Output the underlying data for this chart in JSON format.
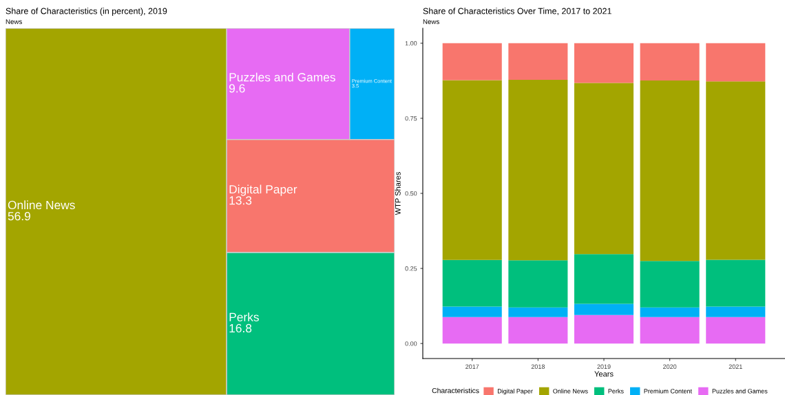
{
  "chart_data": [
    {
      "type": "other",
      "title": "Share of Characteristics (in percent), 2019",
      "subtitle": "News",
      "categories": [
        "Online News",
        "Perks",
        "Digital Paper",
        "Puzzles and Games",
        "Premium Content"
      ],
      "values": [
        56.9,
        16.8,
        13.3,
        9.6,
        3.5
      ],
      "colors": [
        "#a3a500",
        "#00bf7d",
        "#f8766d",
        "#e76bf3",
        "#00b0f6"
      ],
      "data_labels": true
    },
    {
      "type": "bar",
      "title": "Share of Characteristics Over Time, 2017 to 2021",
      "subtitle": "News",
      "xlabel": "Years",
      "ylabel": "WTP Shares",
      "legend_title": "Characteristics",
      "categories": [
        "2017",
        "2018",
        "2019",
        "2020",
        "2021"
      ],
      "stacked": true,
      "series": [
        {
          "name": "Puzzles and Games",
          "color": "#e76bf3",
          "values": [
            0.088,
            0.088,
            0.095,
            0.088,
            0.088
          ]
        },
        {
          "name": "Premium Content",
          "color": "#00b0f6",
          "values": [
            0.035,
            0.032,
            0.037,
            0.032,
            0.035
          ]
        },
        {
          "name": "Perks",
          "color": "#00bf7d",
          "values": [
            0.155,
            0.157,
            0.166,
            0.155,
            0.156
          ]
        },
        {
          "name": "Online News",
          "color": "#a3a500",
          "values": [
            0.599,
            0.601,
            0.57,
            0.601,
            0.594
          ]
        },
        {
          "name": "Digital Paper",
          "color": "#f8766d",
          "values": [
            0.123,
            0.122,
            0.132,
            0.124,
            0.127
          ]
        }
      ],
      "ylim": [
        -0.05,
        1.05
      ],
      "yticks": [
        {
          "value": 0,
          "label": "0.00"
        },
        {
          "value": 0.25,
          "label": "0.25"
        },
        {
          "value": 0.5,
          "label": "0.50"
        },
        {
          "value": 0.75,
          "label": "0.75"
        },
        {
          "value": 1,
          "label": "1.00"
        }
      ],
      "grid": false,
      "legend": "bottom"
    }
  ]
}
